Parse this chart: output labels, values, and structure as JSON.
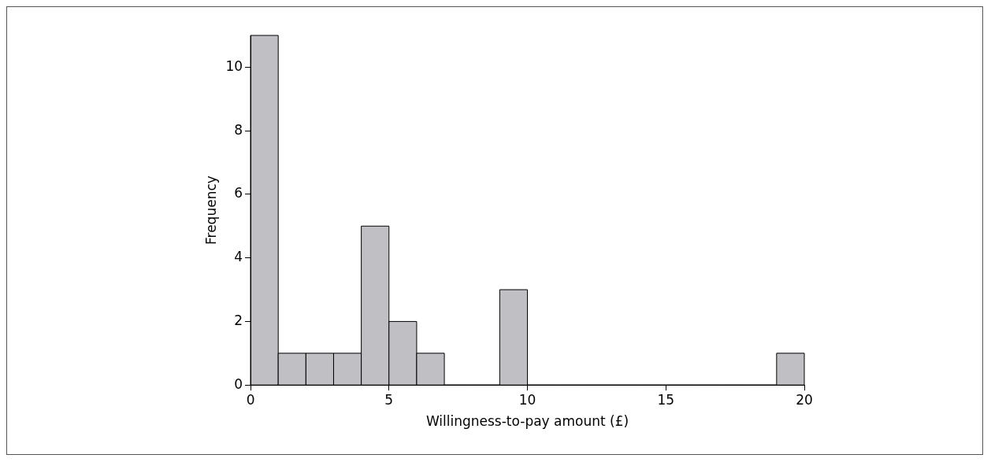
{
  "chart_data": {
    "type": "histogram",
    "bins": [
      0,
      1,
      2,
      3,
      4,
      5,
      6,
      7,
      8,
      9,
      10,
      11,
      12,
      13,
      14,
      15,
      16,
      17,
      18,
      19,
      20
    ],
    "values": [
      11,
      1,
      1,
      1,
      5,
      2,
      1,
      0,
      0,
      3,
      0,
      0,
      0,
      0,
      0,
      0,
      0,
      0,
      0,
      1
    ],
    "color": "#c0c0c4",
    "xlabel": "Willingness-to-pay amount (£)",
    "ylabel": "Frequency",
    "xlim": [
      0,
      20
    ],
    "xticks": [
      0,
      5,
      10,
      15,
      20
    ],
    "ylim": [
      0,
      11
    ],
    "yticks": [
      0,
      2,
      4,
      6,
      8,
      10
    ],
    "grid": false,
    "legend": false
  }
}
